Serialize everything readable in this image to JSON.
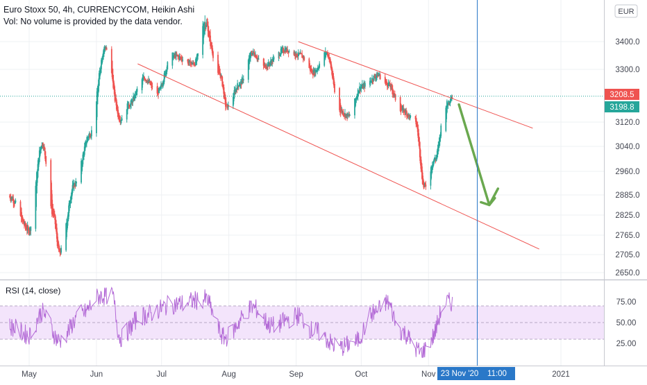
{
  "header": {
    "title": "Euro Stoxx 50, 4h, CURRENCYCOM, Heikin Ashi",
    "volume_note": "Vol: No volume is provided by the data vendor."
  },
  "currency_badge": "EUR",
  "price_labels": {
    "last": "3208.5",
    "prev": "3198.8"
  },
  "colors": {
    "up": "#26a69a",
    "down": "#ef5350",
    "grid": "#eef0f3",
    "channel": "#ef5350",
    "arrow": "#6aa84f",
    "rsi_line": "#b36ad6",
    "rsi_band": "#f3e4fb",
    "cursor": "#2a78c8",
    "badge_last": "#ef5350",
    "badge_prev": "#26a69a",
    "axis_text": "#434651"
  },
  "rsi": {
    "label": "RSI (14, close)",
    "levels": [
      "75.00",
      "50.00",
      "25.00"
    ]
  },
  "crosshair": {
    "date_label": "23 Nov '20",
    "time_label": "11:00"
  },
  "chart_data": {
    "type": "candlestick",
    "style": "Heikin Ashi",
    "symbol": "Euro Stoxx 50",
    "interval": "4h",
    "source": "CURRENCYCOM",
    "ylim": [
      2620,
      3470
    ],
    "y_ticks": [
      "3400.0",
      "3300.0",
      "3208.5",
      "3198.8",
      "3120.0",
      "3040.0",
      "2960.0",
      "2885.0",
      "2825.0",
      "2765.0",
      "2705.0",
      "2650.0"
    ],
    "x_ticks": [
      "May",
      "Jun",
      "Jul",
      "Aug",
      "Sep",
      "Oct",
      "Nov",
      "2021"
    ],
    "key_points": [
      {
        "date": "2020-04-22",
        "close": 2880
      },
      {
        "date": "2020-05-01",
        "close": 2780
      },
      {
        "date": "2020-05-07",
        "close": 3050
      },
      {
        "date": "2020-05-12",
        "close": 2830
      },
      {
        "date": "2020-05-15",
        "close": 2710
      },
      {
        "date": "2020-05-22",
        "close": 2920
      },
      {
        "date": "2020-05-29",
        "close": 3080
      },
      {
        "date": "2020-06-05",
        "close": 3380
      },
      {
        "date": "2020-06-12",
        "close": 3130
      },
      {
        "date": "2020-06-16",
        "close": 3180
      },
      {
        "date": "2020-06-23",
        "close": 3270
      },
      {
        "date": "2020-06-29",
        "close": 3220
      },
      {
        "date": "2020-07-06",
        "close": 3350
      },
      {
        "date": "2020-07-16",
        "close": 3320
      },
      {
        "date": "2020-07-21",
        "close": 3440
      },
      {
        "date": "2020-07-28",
        "close": 3280
      },
      {
        "date": "2020-07-31",
        "close": 3170
      },
      {
        "date": "2020-08-06",
        "close": 3250
      },
      {
        "date": "2020-08-12",
        "close": 3360
      },
      {
        "date": "2020-08-17",
        "close": 3310
      },
      {
        "date": "2020-08-27",
        "close": 3370
      },
      {
        "date": "2020-09-03",
        "close": 3350
      },
      {
        "date": "2020-09-09",
        "close": 3290
      },
      {
        "date": "2020-09-15",
        "close": 3360
      },
      {
        "date": "2020-09-21",
        "close": 3160
      },
      {
        "date": "2020-09-25",
        "close": 3140
      },
      {
        "date": "2020-10-01",
        "close": 3240
      },
      {
        "date": "2020-10-09",
        "close": 3280
      },
      {
        "date": "2020-10-13",
        "close": 3250
      },
      {
        "date": "2020-10-20",
        "close": 3160
      },
      {
        "date": "2020-10-26",
        "close": 3120
      },
      {
        "date": "2020-10-30",
        "close": 2910
      },
      {
        "date": "2020-11-04",
        "close": 3000
      },
      {
        "date": "2020-11-09",
        "close": 3180
      },
      {
        "date": "2020-11-12",
        "close": 3208.5
      }
    ],
    "channel": {
      "upper": [
        {
          "date": "2020-09-02",
          "y": 3400
        },
        {
          "date": "2020-12-19",
          "y": 3100
        }
      ],
      "lower": [
        {
          "date": "2020-06-20",
          "y": 3320
        },
        {
          "date": "2020-12-22",
          "y": 2722
        }
      ]
    },
    "projection_arrow": [
      {
        "date": "2020-11-15",
        "y": 3180
      },
      {
        "date": "2020-11-29",
        "y": 2855
      },
      {
        "date": "2020-12-03",
        "y": 2905
      }
    ],
    "crosshair": {
      "date": "2020-11-23",
      "time": "11:00"
    },
    "rsi": {
      "period": 14,
      "source": "close",
      "levels": [
        75,
        50,
        25
      ],
      "band": [
        30,
        70
      ],
      "ylim": [
        0,
        100
      ],
      "key_points": [
        {
          "date": "2020-04-22",
          "value": 45
        },
        {
          "date": "2020-05-01",
          "value": 35
        },
        {
          "date": "2020-05-07",
          "value": 62
        },
        {
          "date": "2020-05-15",
          "value": 28
        },
        {
          "date": "2020-05-25",
          "value": 60
        },
        {
          "date": "2020-06-03",
          "value": 82
        },
        {
          "date": "2020-06-08",
          "value": 84
        },
        {
          "date": "2020-06-12",
          "value": 32
        },
        {
          "date": "2020-06-22",
          "value": 58
        },
        {
          "date": "2020-07-07",
          "value": 72
        },
        {
          "date": "2020-07-21",
          "value": 78
        },
        {
          "date": "2020-07-30",
          "value": 32
        },
        {
          "date": "2020-08-12",
          "value": 68
        },
        {
          "date": "2020-08-21",
          "value": 46
        },
        {
          "date": "2020-09-02",
          "value": 58
        },
        {
          "date": "2020-09-09",
          "value": 40
        },
        {
          "date": "2020-09-21",
          "value": 20
        },
        {
          "date": "2020-09-28",
          "value": 26
        },
        {
          "date": "2020-10-07",
          "value": 62
        },
        {
          "date": "2020-10-13",
          "value": 74
        },
        {
          "date": "2020-10-19",
          "value": 40
        },
        {
          "date": "2020-10-29",
          "value": 14
        },
        {
          "date": "2020-11-02",
          "value": 30
        },
        {
          "date": "2020-11-09",
          "value": 75
        },
        {
          "date": "2020-11-12",
          "value": 74
        }
      ]
    }
  }
}
